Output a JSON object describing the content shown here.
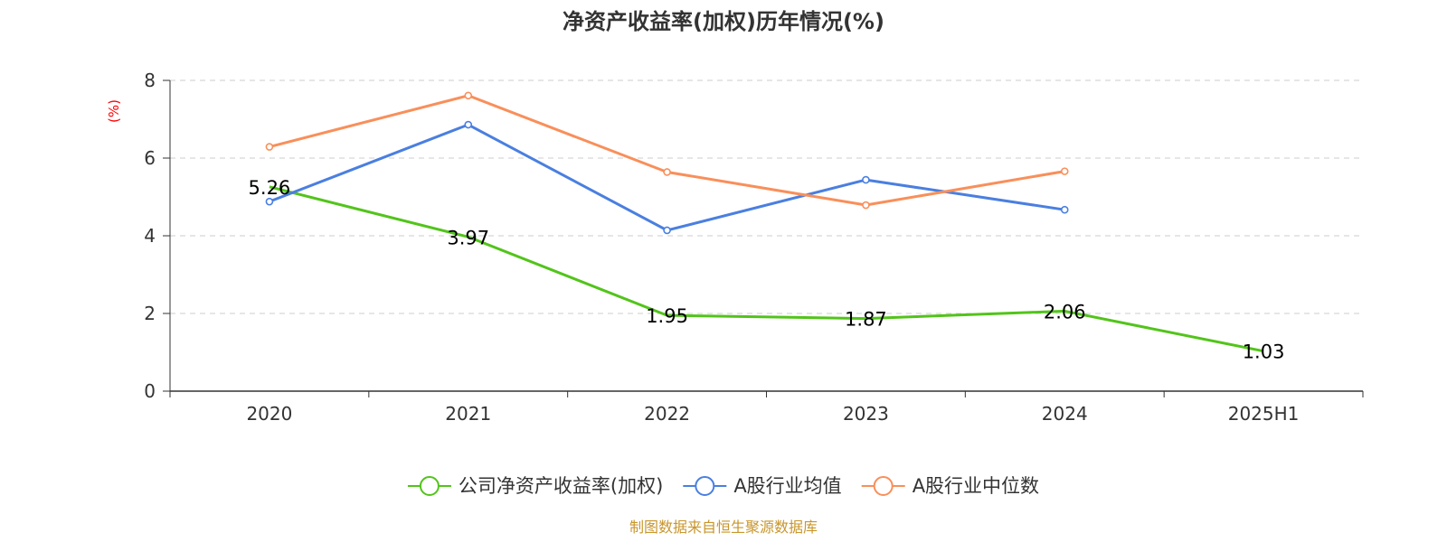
{
  "chart_data": {
    "type": "line",
    "title": "净资产收益率(加权)历年情况(%)",
    "ylabel": "(%)",
    "categories": [
      "2020",
      "2021",
      "2022",
      "2023",
      "2024",
      "2025H1"
    ],
    "ylim": [
      0,
      8
    ],
    "yticks": [
      0,
      2,
      4,
      6,
      8
    ],
    "grid": true,
    "legend_position": "bottom",
    "series": [
      {
        "name": "公司净资产收益率(加权)",
        "color": "#52c41a",
        "values": [
          5.26,
          3.97,
          1.95,
          1.87,
          2.06,
          1.03
        ],
        "show_labels": true,
        "show_markers": false
      },
      {
        "name": "A股行业均值",
        "color": "#4a7fe0",
        "values": [
          4.88,
          6.86,
          4.14,
          5.44,
          4.67,
          null
        ],
        "show_labels": false,
        "show_markers": true
      },
      {
        "name": "A股行业中位数",
        "color": "#f98f5a",
        "values": [
          6.29,
          7.61,
          5.64,
          4.79,
          5.66,
          null
        ],
        "show_labels": false,
        "show_markers": true
      }
    ]
  },
  "source_note": "制图数据来自恒生聚源数据库",
  "colors": {
    "ylabel": "#ff0000",
    "source": "#c8962c",
    "grid": "#cccccc",
    "axis": "#333333"
  }
}
